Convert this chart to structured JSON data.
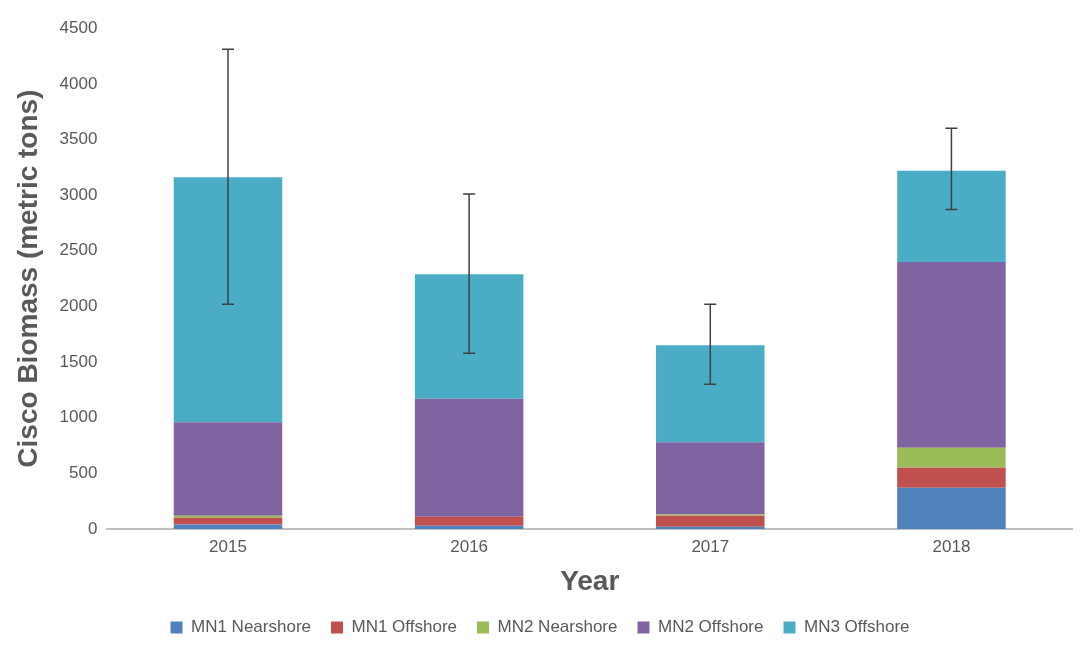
{
  "chart_data": {
    "type": "bar",
    "stacked": true,
    "xlabel": "Year",
    "ylabel": "Cisco Biomass (metric tons)",
    "categories": [
      "2015",
      "2016",
      "2017",
      "2018"
    ],
    "series": [
      {
        "name": "MN1 Nearshore",
        "color": "#4f81bd",
        "values": [
          40,
          30,
          20,
          370
        ]
      },
      {
        "name": "MN1 Offshore",
        "color": "#c0504d",
        "values": [
          60,
          80,
          100,
          180
        ]
      },
      {
        "name": "MN2 Nearshore",
        "color": "#9bbb59",
        "values": [
          20,
          null,
          10,
          180
        ]
      },
      {
        "name": "MN2 Offshore",
        "color": "#8064a2",
        "values": [
          840,
          1060,
          650,
          1670
        ]
      },
      {
        "name": "MN3 Offshore",
        "color": "#4bacc6",
        "values": [
          2200,
          1120,
          870,
          820
        ],
        "errors": [
          [
            2020,
            4310
          ],
          [
            1580,
            3010
          ],
          [
            1300,
            2020
          ],
          [
            2870,
            3600
          ]
        ]
      }
    ],
    "ylim": [
      0,
      4500
    ],
    "yticks": [
      0,
      500,
      1000,
      1500,
      2000,
      2500,
      3000,
      3500,
      4000,
      4500
    ],
    "grid": false,
    "legend": "bottom"
  }
}
